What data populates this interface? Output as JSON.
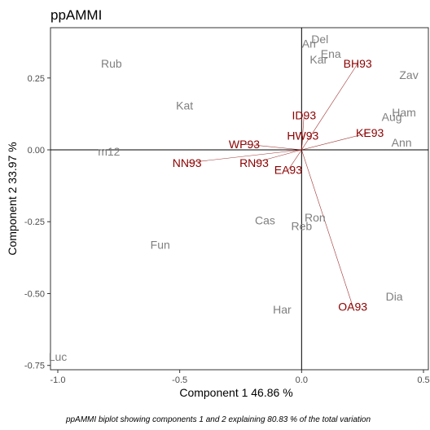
{
  "chart_data": {
    "type": "scatter",
    "title": "ppAMMI",
    "xlabel": "Component 1 46.86 %",
    "ylabel": "Component 2 33.97 %",
    "caption": "ppAMMI biplot showing components 1 and 2 explaining  80.83 % of the total variation",
    "xlim": [
      -1.03,
      0.52
    ],
    "ylim": [
      -0.765,
      0.425
    ],
    "xticks": [
      -1.0,
      -0.5,
      0.0,
      0.5
    ],
    "xtick_labels": [
      "-1.0",
      "-0.5",
      "0.0",
      "0.5"
    ],
    "yticks": [
      -0.75,
      -0.5,
      -0.25,
      0.0,
      0.25
    ],
    "ytick_labels": [
      "-0.75",
      "-0.50",
      "-0.25",
      "0.00",
      "0.25"
    ],
    "grid": false,
    "reference_lines": {
      "x": 0,
      "y": 0
    },
    "genotype_color": "#7f7f7f",
    "environment_color": "#8b0000",
    "genotypes": [
      {
        "label": "Rub",
        "x": -0.78,
        "y": 0.3
      },
      {
        "label": "Kat",
        "x": -0.48,
        "y": 0.155
      },
      {
        "label": "m12",
        "x": -0.79,
        "y": -0.005
      },
      {
        "label": "Fun",
        "x": -0.58,
        "y": -0.33
      },
      {
        "label": "Luc",
        "x": -1.0,
        "y": -0.72
      },
      {
        "label": "Del",
        "x": 0.075,
        "y": 0.385
      },
      {
        "label": "Ari",
        "x": 0.03,
        "y": 0.37
      },
      {
        "label": "Ena",
        "x": 0.12,
        "y": 0.335
      },
      {
        "label": "Kar",
        "x": 0.07,
        "y": 0.315
      },
      {
        "label": "Zav",
        "x": 0.44,
        "y": 0.26
      },
      {
        "label": "Ham",
        "x": 0.42,
        "y": 0.13
      },
      {
        "label": "Aug",
        "x": 0.37,
        "y": 0.115
      },
      {
        "label": "Ann",
        "x": 0.41,
        "y": 0.025
      },
      {
        "label": "Cas",
        "x": -0.15,
        "y": -0.245
      },
      {
        "label": "Ron",
        "x": 0.055,
        "y": -0.235
      },
      {
        "label": "Reb",
        "x": 0.0,
        "y": -0.265
      },
      {
        "label": "Har",
        "x": -0.08,
        "y": -0.555
      },
      {
        "label": "Dia",
        "x": 0.38,
        "y": -0.51
      }
    ],
    "environments": [
      {
        "label": "BH93",
        "x": 0.23,
        "y": 0.3
      },
      {
        "label": "KE93",
        "x": 0.28,
        "y": 0.06
      },
      {
        "label": "ID93",
        "x": 0.01,
        "y": 0.12
      },
      {
        "label": "HW93",
        "x": 0.005,
        "y": 0.05
      },
      {
        "label": "WP93",
        "x": -0.235,
        "y": 0.02
      },
      {
        "label": "NN93",
        "x": -0.47,
        "y": -0.045
      },
      {
        "label": "RN93",
        "x": -0.195,
        "y": -0.045
      },
      {
        "label": "EA93",
        "x": -0.055,
        "y": -0.07
      },
      {
        "label": "OA93",
        "x": 0.21,
        "y": -0.545
      }
    ]
  }
}
